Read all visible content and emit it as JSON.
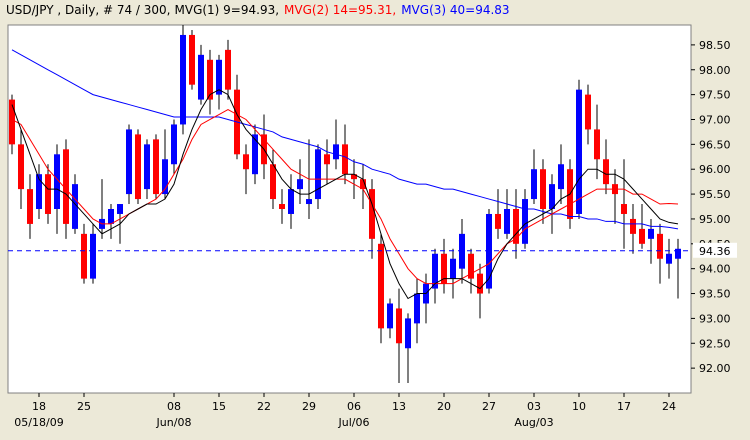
{
  "header": {
    "title": "USD/JPY  , Daily, # 74 / 300,",
    "mvg1": "MVG(1) 9=94.93,",
    "mvg2": "MVG(2) 14=95.31,",
    "mvg3": "MVG(3) 40=94.83"
  },
  "colors": {
    "background": "#ece9d8",
    "plot_bg": "#ffffff",
    "up_candle": "#0000ff",
    "down_candle": "#ff0000",
    "mvg1": "#000000",
    "mvg2": "#ff0000",
    "mvg3": "#0000ff",
    "current_line": "#0000ff"
  },
  "chart_data": {
    "type": "candlestick",
    "symbol": "USD/JPY",
    "period": "Daily",
    "current_price": 94.36,
    "current_price_label": "94.36",
    "y_ticks": [
      "92.00",
      "92.50",
      "93.00",
      "93.50",
      "94.00",
      "94.50",
      "95.00",
      "95.50",
      "96.00",
      "96.50",
      "97.00",
      "97.50",
      "98.00",
      "98.50"
    ],
    "ylim": [
      91.5,
      98.9
    ],
    "x_ticks": [
      {
        "label": "18",
        "sub": "05/18/09",
        "i": 3
      },
      {
        "label": "25",
        "sub": "",
        "i": 8
      },
      {
        "label": "08",
        "sub": "Jun/08",
        "i": 18
      },
      {
        "label": "15",
        "sub": "",
        "i": 23
      },
      {
        "label": "22",
        "sub": "",
        "i": 28
      },
      {
        "label": "29",
        "sub": "",
        "i": 33
      },
      {
        "label": "06",
        "sub": "Jul/06",
        "i": 38
      },
      {
        "label": "13",
        "sub": "",
        "i": 43
      },
      {
        "label": "20",
        "sub": "",
        "i": 48
      },
      {
        "label": "27",
        "sub": "",
        "i": 53
      },
      {
        "label": "03",
        "sub": "Aug/03",
        "i": 58
      },
      {
        "label": "10",
        "sub": "",
        "i": 63
      },
      {
        "label": "17",
        "sub": "",
        "i": 68
      },
      {
        "label": "24",
        "sub": "",
        "i": 73
      }
    ],
    "ohlc": [
      [
        97.4,
        97.5,
        96.3,
        96.5
      ],
      [
        96.5,
        96.8,
        95.2,
        95.6
      ],
      [
        95.6,
        95.9,
        94.6,
        94.9
      ],
      [
        95.2,
        96.1,
        95.0,
        95.9
      ],
      [
        95.9,
        96.1,
        94.9,
        95.1
      ],
      [
        95.2,
        96.5,
        94.7,
        96.3
      ],
      [
        96.4,
        96.6,
        94.6,
        94.9
      ],
      [
        94.8,
        95.9,
        94.7,
        95.7
      ],
      [
        94.7,
        94.9,
        93.7,
        93.8
      ],
      [
        93.8,
        94.9,
        93.7,
        94.7
      ],
      [
        94.8,
        95.8,
        94.6,
        95.0
      ],
      [
        94.9,
        95.3,
        94.6,
        95.2
      ],
      [
        95.1,
        95.3,
        94.5,
        95.3
      ],
      [
        95.5,
        96.9,
        95.3,
        96.8
      ],
      [
        96.7,
        96.8,
        95.3,
        95.4
      ],
      [
        95.6,
        96.6,
        95.4,
        96.5
      ],
      [
        96.6,
        96.7,
        95.4,
        95.5
      ],
      [
        95.5,
        96.8,
        95.4,
        96.2
      ],
      [
        96.1,
        97.0,
        95.9,
        96.9
      ],
      [
        96.9,
        98.9,
        96.7,
        98.7
      ],
      [
        98.7,
        98.8,
        97.6,
        97.7
      ],
      [
        97.4,
        98.5,
        97.3,
        98.3
      ],
      [
        98.2,
        98.4,
        97.1,
        97.4
      ],
      [
        97.5,
        98.3,
        97.2,
        98.2
      ],
      [
        98.4,
        98.6,
        97.4,
        97.6
      ],
      [
        97.6,
        97.9,
        96.2,
        96.3
      ],
      [
        96.3,
        96.5,
        95.5,
        96.0
      ],
      [
        95.9,
        96.9,
        95.7,
        96.7
      ],
      [
        96.7,
        97.1,
        95.8,
        96.1
      ],
      [
        96.1,
        96.4,
        95.2,
        95.4
      ],
      [
        95.3,
        95.6,
        94.9,
        95.2
      ],
      [
        95.1,
        95.9,
        94.8,
        95.6
      ],
      [
        95.6,
        96.2,
        95.3,
        95.8
      ],
      [
        95.3,
        96.6,
        95.0,
        95.4
      ],
      [
        95.4,
        96.5,
        95.2,
        96.4
      ],
      [
        96.3,
        96.6,
        95.7,
        96.1
      ],
      [
        96.2,
        97.0,
        96.0,
        96.5
      ],
      [
        96.5,
        96.9,
        95.7,
        95.9
      ],
      [
        95.9,
        96.2,
        95.4,
        95.8
      ],
      [
        95.8,
        96.1,
        95.2,
        95.6
      ],
      [
        95.6,
        95.8,
        94.2,
        94.6
      ],
      [
        94.5,
        94.7,
        92.5,
        92.8
      ],
      [
        92.8,
        93.4,
        92.6,
        93.3
      ],
      [
        93.2,
        93.6,
        91.7,
        92.5
      ],
      [
        92.4,
        93.1,
        91.7,
        93.0
      ],
      [
        92.9,
        93.8,
        92.5,
        93.5
      ],
      [
        93.3,
        93.9,
        92.9,
        93.7
      ],
      [
        93.6,
        94.4,
        93.3,
        94.3
      ],
      [
        94.3,
        94.6,
        93.5,
        93.7
      ],
      [
        93.8,
        94.4,
        93.4,
        94.2
      ],
      [
        94.0,
        95.0,
        93.7,
        94.7
      ],
      [
        94.3,
        94.4,
        93.5,
        93.8
      ],
      [
        93.9,
        94.1,
        93.0,
        93.5
      ],
      [
        93.6,
        95.2,
        93.5,
        95.1
      ],
      [
        95.1,
        95.6,
        94.6,
        94.8
      ],
      [
        94.7,
        95.6,
        94.6,
        95.2
      ],
      [
        95.2,
        95.6,
        94.2,
        94.5
      ],
      [
        94.5,
        95.6,
        94.4,
        95.4
      ],
      [
        95.4,
        96.4,
        95.3,
        96.0
      ],
      [
        96.0,
        96.2,
        94.9,
        95.2
      ],
      [
        95.2,
        95.9,
        94.7,
        95.7
      ],
      [
        95.6,
        96.5,
        95.3,
        96.1
      ],
      [
        96.0,
        96.2,
        94.8,
        95.0
      ],
      [
        95.1,
        97.8,
        95.0,
        97.6
      ],
      [
        97.5,
        97.7,
        96.5,
        96.8
      ],
      [
        96.8,
        97.3,
        95.8,
        96.2
      ],
      [
        96.2,
        96.6,
        95.5,
        95.7
      ],
      [
        95.7,
        96.0,
        94.9,
        95.5
      ],
      [
        95.3,
        96.2,
        94.4,
        95.1
      ],
      [
        95.0,
        95.3,
        94.3,
        94.7
      ],
      [
        94.8,
        95.3,
        94.4,
        94.5
      ],
      [
        94.6,
        95.0,
        94.1,
        94.8
      ],
      [
        94.7,
        94.9,
        93.7,
        94.2
      ],
      [
        94.1,
        94.6,
        93.8,
        94.3
      ],
      [
        94.2,
        94.6,
        93.4,
        94.4
      ]
    ],
    "mvg1": [
      97.3,
      96.8,
      96.3,
      95.8,
      95.6,
      95.6,
      95.5,
      95.3,
      95.1,
      94.9,
      94.7,
      94.8,
      94.9,
      95.1,
      95.2,
      95.3,
      95.3,
      95.4,
      95.7,
      96.3,
      96.8,
      97.2,
      97.5,
      97.6,
      97.5,
      97.1,
      96.8,
      96.6,
      96.4,
      96.1,
      95.8,
      95.6,
      95.5,
      95.5,
      95.6,
      95.7,
      95.8,
      95.9,
      95.9,
      95.8,
      95.3,
      94.7,
      94.1,
      93.7,
      93.4,
      93.5,
      93.5,
      93.7,
      93.8,
      93.8,
      93.8,
      93.7,
      93.6,
      93.8,
      94.2,
      94.5,
      94.7,
      94.9,
      95.0,
      95.1,
      95.2,
      95.4,
      95.5,
      95.8,
      96.0,
      96.0,
      95.9,
      95.9,
      95.8,
      95.6,
      95.4,
      95.2,
      95.0,
      94.93,
      94.9
    ],
    "mvg2": [
      97.0,
      96.9,
      96.6,
      96.3,
      96.0,
      95.8,
      95.6,
      95.4,
      95.2,
      95.0,
      94.9,
      94.9,
      95.0,
      95.1,
      95.2,
      95.3,
      95.4,
      95.6,
      95.9,
      96.2,
      96.6,
      96.9,
      97.0,
      97.1,
      97.2,
      97.1,
      97.0,
      96.8,
      96.6,
      96.4,
      96.2,
      96.0,
      95.9,
      95.8,
      95.8,
      95.8,
      95.8,
      95.8,
      95.7,
      95.6,
      95.3,
      95.0,
      94.6,
      94.3,
      94.0,
      93.8,
      93.7,
      93.7,
      93.7,
      93.7,
      93.8,
      93.9,
      94.0,
      94.1,
      94.3,
      94.5,
      94.6,
      94.8,
      94.9,
      95.0,
      95.1,
      95.2,
      95.3,
      95.4,
      95.5,
      95.6,
      95.6,
      95.6,
      95.6,
      95.5,
      95.5,
      95.4,
      95.3,
      95.31,
      95.3
    ],
    "mvg3": [
      98.4,
      98.3,
      98.2,
      98.1,
      98.0,
      97.9,
      97.8,
      97.7,
      97.6,
      97.5,
      97.45,
      97.4,
      97.35,
      97.3,
      97.25,
      97.2,
      97.15,
      97.1,
      97.05,
      97.05,
      97.05,
      97.05,
      97.05,
      97.05,
      97.0,
      96.95,
      96.9,
      96.85,
      96.8,
      96.75,
      96.65,
      96.6,
      96.55,
      96.5,
      96.45,
      96.35,
      96.3,
      96.25,
      96.15,
      96.1,
      96.0,
      95.95,
      95.9,
      95.8,
      95.75,
      95.7,
      95.7,
      95.65,
      95.6,
      95.6,
      95.55,
      95.5,
      95.45,
      95.4,
      95.35,
      95.3,
      95.25,
      95.2,
      95.2,
      95.15,
      95.1,
      95.1,
      95.05,
      95.05,
      95.0,
      95.0,
      94.95,
      94.95,
      94.9,
      94.9,
      94.9,
      94.85,
      94.85,
      94.83,
      94.8
    ]
  }
}
